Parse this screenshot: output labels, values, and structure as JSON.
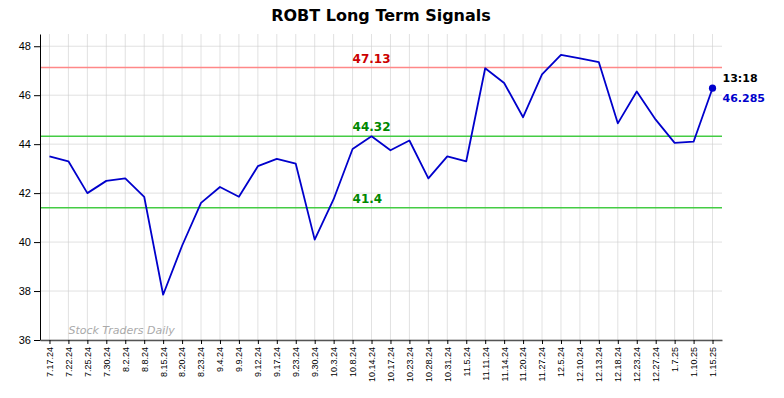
{
  "chart_data": {
    "type": "line",
    "title": "ROBT Long Term Signals",
    "categories": [
      "7.17.24",
      "7.22.24",
      "7.25.24",
      "7.30.24",
      "8.2.24",
      "8.8.24",
      "8.15.24",
      "8.20.24",
      "8.23.24",
      "9.4.24",
      "9.9.24",
      "9.12.24",
      "9.17.24",
      "9.23.24",
      "9.30.24",
      "10.3.24",
      "10.8.24",
      "10.14.24",
      "10.17.24",
      "10.23.24",
      "10.28.24",
      "10.31.24",
      "11.5.24",
      "11.11.24",
      "11.14.24",
      "11.20.24",
      "11.27.24",
      "12.5.24",
      "12.10.24",
      "12.13.24",
      "12.18.24",
      "12.23.24",
      "12.27.24",
      "1.7.25",
      "1.10.25",
      "1.15.25"
    ],
    "series": [
      {
        "color": "#0000cc",
        "last_point_color": "#0000cc",
        "values": [
          43.5,
          43.3,
          42.0,
          42.5,
          42.6,
          41.85,
          37.85,
          39.85,
          41.6,
          42.25,
          41.85,
          43.1,
          43.4,
          43.2,
          40.1,
          41.75,
          43.8,
          44.32,
          43.75,
          44.15,
          42.6,
          43.5,
          43.3,
          47.1,
          46.5,
          45.1,
          46.85,
          47.65,
          47.5,
          47.35,
          44.85,
          46.15,
          45.0,
          44.05,
          44.1,
          46.285
        ]
      }
    ],
    "reference_lines": [
      {
        "value": 47.13,
        "color": "#ff8888",
        "label": "47.13",
        "label_color": "#cc0000",
        "label_x": "10.8.24"
      },
      {
        "value": 44.32,
        "color": "#44cc44",
        "label": "44.32",
        "label_color": "#008800",
        "label_x": "10.8.24"
      },
      {
        "value": 41.4,
        "color": "#44cc44",
        "label": "41.4",
        "label_color": "#008800",
        "label_x": "10.8.24"
      }
    ],
    "last_point_labels": [
      {
        "text": "13:18",
        "color": "#000000"
      },
      {
        "text": "46.285",
        "color": "#0000cc"
      }
    ],
    "watermark": {
      "text": "Stock Traders Daily",
      "color": "#aaaaaa"
    },
    "ylim": [
      36,
      48.5
    ],
    "yticks": [
      36,
      38,
      40,
      42,
      44,
      46,
      48
    ],
    "grid": true,
    "grid_color": "#cccccc",
    "axis_color": "#555555",
    "background": "#ffffff"
  }
}
